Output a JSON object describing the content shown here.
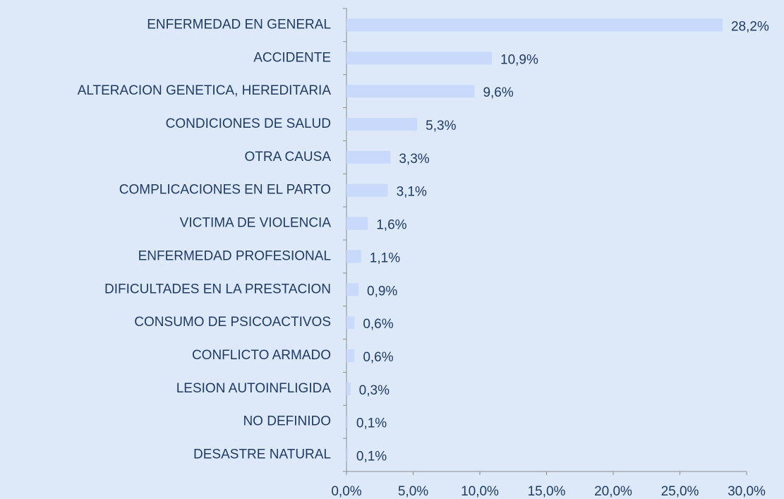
{
  "chart_data": {
    "type": "hbar",
    "categories": [
      "ENFERMEDAD EN GENERAL",
      "ACCIDENTE",
      "ALTERACION GENETICA, HEREDITARIA",
      "CONDICIONES DE SALUD",
      "OTRA CAUSA",
      "COMPLICACIONES EN EL PARTO",
      "VICTIMA DE VIOLENCIA",
      "ENFERMEDAD PROFESIONAL",
      "DIFICULTADES EN LA PRESTACION",
      "CONSUMO DE PSICOACTIVOS",
      "CONFLICTO ARMADO",
      "LESION AUTOINFLIGIDA",
      "NO DEFINIDO",
      "DESASTRE NATURAL"
    ],
    "values": [
      28.2,
      10.9,
      9.6,
      5.3,
      3.3,
      3.1,
      1.6,
      1.1,
      0.9,
      0.6,
      0.6,
      0.3,
      0.1,
      0.1
    ],
    "value_labels": [
      "28,2%",
      "10,9%",
      "9,6%",
      "5,3%",
      "3,3%",
      "3,1%",
      "1,6%",
      "1,1%",
      "0,9%",
      "0,6%",
      "0,6%",
      "0,3%",
      "0,1%",
      "0,1%"
    ],
    "color": "#c8d9fb",
    "xlim": [
      0,
      30
    ],
    "xticks": [
      {
        "value": 0,
        "label": "0,0%"
      },
      {
        "value": 5,
        "label": "5,0%"
      },
      {
        "value": 10,
        "label": "10,0%"
      },
      {
        "value": 15,
        "label": "15,0%"
      },
      {
        "value": 20,
        "label": "20,0%"
      },
      {
        "value": 25,
        "label": "25,0%"
      },
      {
        "value": 30,
        "label": "30,0%"
      }
    ],
    "grid": false
  }
}
